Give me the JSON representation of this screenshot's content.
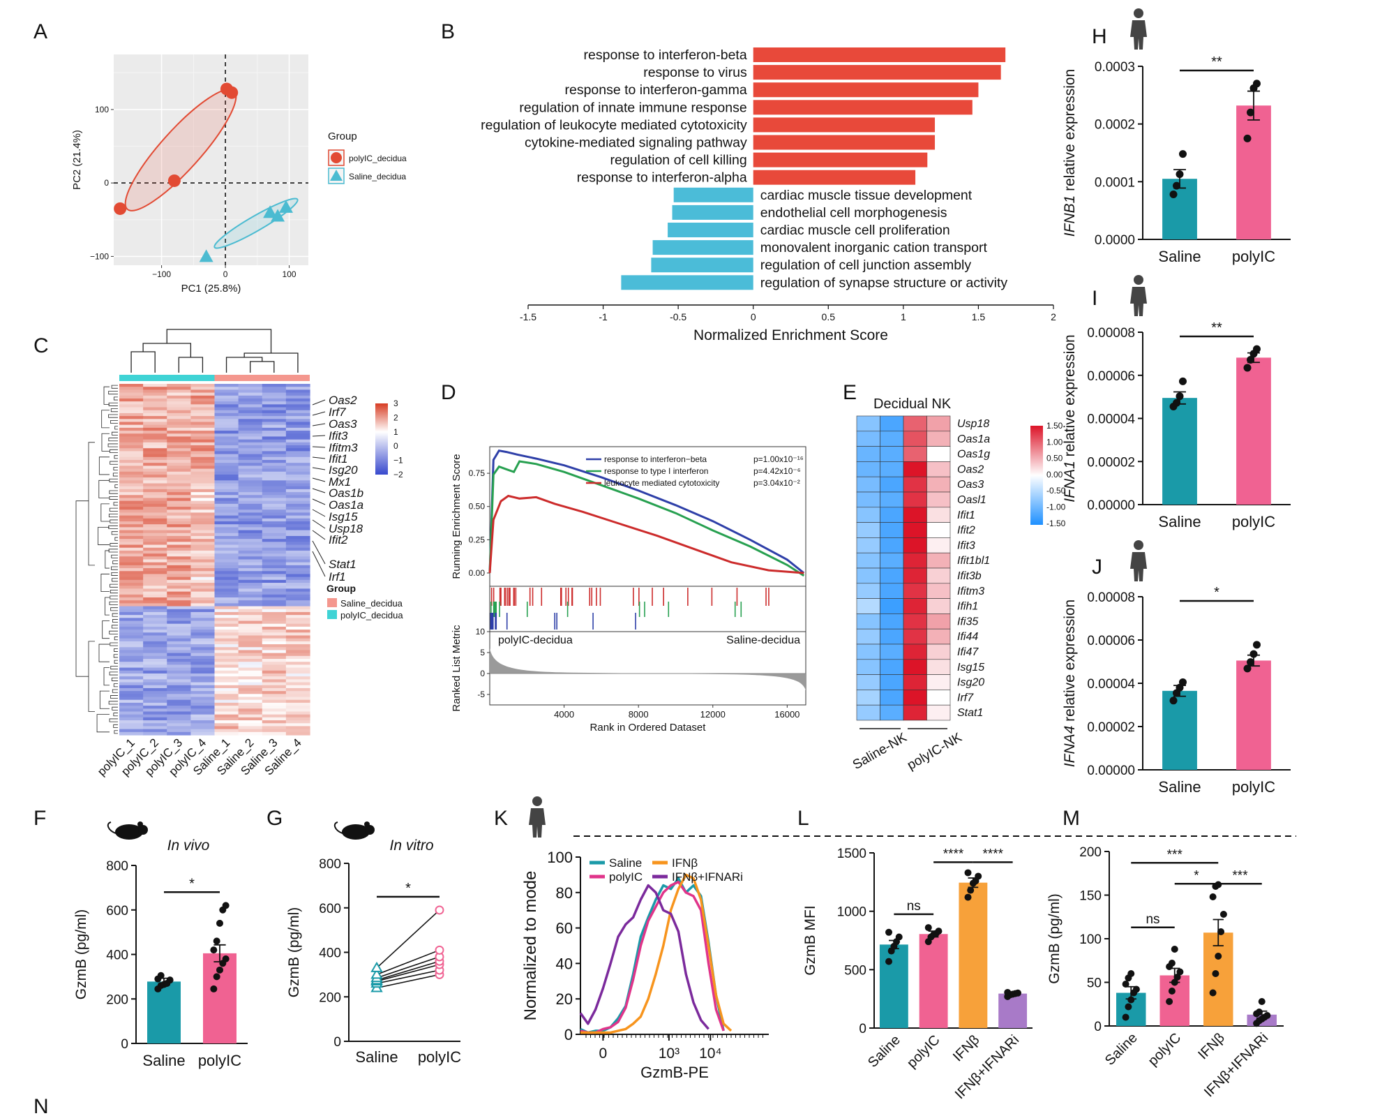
{
  "panel_letters": [
    "A",
    "B",
    "C",
    "D",
    "E",
    "F",
    "G",
    "H",
    "I",
    "J",
    "K",
    "L",
    "M",
    "N"
  ],
  "colors": {
    "polyIC": "#f06292",
    "saline": "#1a9aa8",
    "ifnb": "#f7a13a",
    "ifnb_ifnari": "#a87ac8",
    "pca_polyIC": "#e24a33",
    "pca_saline": "#4bbbd1",
    "nes_up": "#e8493a",
    "nes_down": "#4bbcd8"
  },
  "chart_data": [
    {
      "panel": "A",
      "type": "scatter",
      "xlabel": "PC1 (25.8%)",
      "ylabel": "PC2 (21.4%)",
      "xlim": [
        -175,
        130
      ],
      "ylim": [
        -112,
        175
      ],
      "xticks": [
        -100,
        0,
        100
      ],
      "yticks": [
        -100,
        0,
        100
      ],
      "xtick_labels": [
        "−100",
        "0",
        "100"
      ],
      "ytick_labels": [
        "−100",
        "0",
        "100"
      ],
      "legend_title": "Group",
      "series": [
        {
          "name": "polyIC_decidua",
          "marker": "circle",
          "x": [
            -165,
            -80,
            2,
            10
          ],
          "y": [
            -35,
            3,
            128,
            123
          ]
        },
        {
          "name": "Saline_decidua",
          "marker": "triangle",
          "x": [
            -30,
            70,
            82,
            95
          ],
          "y": [
            -100,
            -40,
            -45,
            -33
          ]
        }
      ],
      "ellipses": [
        {
          "group": "polyIC_decidua",
          "cx": -70,
          "cy": 45,
          "rx": 125,
          "ry": 27,
          "angle": -48
        },
        {
          "group": "Saline_decidua",
          "cx": 48,
          "cy": -55,
          "rx": 75,
          "ry": 10,
          "angle": -30
        }
      ]
    },
    {
      "panel": "B",
      "type": "bar",
      "orientation": "horizontal",
      "xlabel": "Normalized Enrichment Score",
      "xlim": [
        -1.5,
        2
      ],
      "xticks": [
        -1.5,
        -1,
        -0.5,
        0,
        0.5,
        1,
        1.5,
        2
      ],
      "categories": [
        "response to interferon-beta",
        "response to virus",
        "response to interferon-gamma",
        "regulation of innate immune response",
        "regulation of leukocyte mediated cytotoxicity",
        "cytokine-mediated signaling pathway",
        "regulation of cell killing",
        "response to interferon-alpha",
        "cardiac muscle tissue development",
        "endothelial cell morphogenesis",
        "cardiac muscle cell proliferation",
        "monovalent inorganic cation transport",
        "regulation of cell junction assembly",
        "regulation of synapse structure or activity"
      ],
      "values": [
        1.68,
        1.65,
        1.5,
        1.46,
        1.21,
        1.21,
        1.16,
        1.08,
        -0.53,
        -0.54,
        -0.57,
        -0.67,
        -0.68,
        -0.88
      ]
    },
    {
      "panel": "C",
      "type": "heatmap",
      "columns": [
        "polyIC_1",
        "polyIC_2",
        "polyIC_3",
        "polyIC_4",
        "Saline_1",
        "Saline_2",
        "Saline_3",
        "Saline_4"
      ],
      "gene_labels": [
        "Oas2",
        "Irf7",
        "Oas3",
        "Ifit3",
        "Ifitm3",
        "Ifit1",
        "Isg20",
        "Mx1",
        "Oas1b",
        "Oas1a",
        "Isg15",
        "Usp18",
        "Ifit2",
        "Stat1",
        "Irf1"
      ],
      "colorbar_ticks": [
        "3",
        "2",
        "1",
        "0",
        "−1",
        "−2"
      ],
      "legend_title": "Group",
      "legend_items": [
        "Saline_decidua",
        "polyIC_decidua"
      ]
    },
    {
      "panel": "D",
      "type": "line",
      "ylabel": "Running Enrichment Score",
      "ylabel2": "Ranked List Metric",
      "xlabel": "Rank in Ordered Dataset",
      "xlim": [
        0,
        17000
      ],
      "ylim": [
        -0.1,
        0.95
      ],
      "xticks": [
        4000,
        8000,
        12000,
        16000
      ],
      "yticks": [
        0.0,
        0.25,
        0.5,
        0.75
      ],
      "ytick_labels": [
        "0.00",
        "0.25",
        "0.50",
        "0.75"
      ],
      "metric_yticks": [
        "10",
        "5",
        "0",
        "-5"
      ],
      "left_label": "polyIC-decidua",
      "right_label": "Saline-decidua",
      "series": [
        {
          "name": "response to interferon−beta",
          "p": "p=1.00x10⁻¹⁶",
          "color": "#2e3fa8",
          "x": [
            0,
            200,
            500,
            900,
            1500,
            2500,
            4000,
            6000,
            8000,
            10000,
            12000,
            14000,
            16000,
            16900
          ],
          "y": [
            0,
            0.85,
            0.92,
            0.91,
            0.89,
            0.86,
            0.81,
            0.72,
            0.62,
            0.51,
            0.39,
            0.25,
            0.1,
            0.0
          ]
        },
        {
          "name": "response to type I interferon",
          "p": "p=4.42x10⁻⁶",
          "color": "#27a050",
          "x": [
            0,
            200,
            500,
            900,
            1300,
            1600,
            2500,
            4000,
            6000,
            8000,
            10000,
            12000,
            14000,
            16000,
            16900
          ],
          "y": [
            0,
            0.74,
            0.8,
            0.78,
            0.76,
            0.84,
            0.82,
            0.76,
            0.66,
            0.56,
            0.45,
            0.32,
            0.2,
            0.06,
            -0.02
          ]
        },
        {
          "name": "leukocyte mediated cytotoxicity",
          "p": "p=3.04x10⁻²",
          "color": "#cc2b2b",
          "x": [
            0,
            200,
            600,
            1000,
            1600,
            2500,
            3500,
            5000,
            7000,
            9000,
            11000,
            13000,
            15000,
            16900
          ],
          "y": [
            0,
            0.4,
            0.54,
            0.58,
            0.56,
            0.57,
            0.52,
            0.46,
            0.37,
            0.28,
            0.18,
            0.08,
            0.02,
            0.0
          ]
        }
      ]
    },
    {
      "panel": "E",
      "type": "heatmap",
      "title": "Decidual NK",
      "columns": [
        "Saline-NK",
        "Saline-NK",
        "polyIC-NK",
        "polyIC-NK"
      ],
      "group_labels": [
        "Saline-NK",
        "polyIC-NK"
      ],
      "rows": [
        "Usp18",
        "Oas1a",
        "Oas1g",
        "Oas2",
        "Oas3",
        "Oasl1",
        "Ifit1",
        "Ifit2",
        "Ifit3",
        "Ifit1bl1",
        "Ifit3b",
        "Ifitm3",
        "Ifih1",
        "Ifi35",
        "Ifi44",
        "Ifi47",
        "Isg15",
        "Isg20",
        "Irf7",
        "Stat1"
      ],
      "values": [
        [
          -0.8,
          -1.2,
          1.0,
          0.6
        ],
        [
          -0.9,
          -1.1,
          1.1,
          0.5
        ],
        [
          -1.0,
          -1.1,
          1.0,
          0.0
        ],
        [
          -1.0,
          -1.1,
          1.5,
          0.4
        ],
        [
          -0.9,
          -1.2,
          1.3,
          0.5
        ],
        [
          -0.9,
          -1.1,
          1.3,
          0.4
        ],
        [
          -0.8,
          -1.2,
          1.5,
          0.2
        ],
        [
          -0.7,
          -1.2,
          1.5,
          0.0
        ],
        [
          -0.7,
          -1.2,
          1.5,
          0.1
        ],
        [
          -0.8,
          -1.1,
          1.4,
          0.5
        ],
        [
          -0.8,
          -1.2,
          1.4,
          0.3
        ],
        [
          -0.7,
          -1.2,
          1.3,
          0.4
        ],
        [
          -0.5,
          -1.3,
          1.4,
          0.3
        ],
        [
          -0.8,
          -1.2,
          1.3,
          0.6
        ],
        [
          -0.7,
          -1.2,
          1.3,
          0.5
        ],
        [
          -0.8,
          -1.1,
          1.4,
          0.3
        ],
        [
          -0.8,
          -1.2,
          1.5,
          0.2
        ],
        [
          -0.7,
          -1.2,
          1.4,
          0.1
        ],
        [
          -0.6,
          -1.2,
          1.5,
          0.0
        ],
        [
          -0.7,
          -1.1,
          1.4,
          0.1
        ]
      ],
      "colorbar_ticks": [
        "1.50",
        "1.00",
        "0.50",
        "0.00",
        "-0.50",
        "-1.00",
        "-1.50"
      ]
    },
    {
      "panel": "F",
      "type": "bar",
      "title": "In vivo",
      "ylabel": "GzmB (pg/ml)",
      "ylim": [
        0,
        800
      ],
      "yticks": [
        0,
        200,
        400,
        600,
        800
      ],
      "categories": [
        "Saline",
        "polyIC"
      ],
      "values": [
        278,
        405
      ],
      "errors": [
        15,
        38
      ],
      "points": [
        [
          245,
          260,
          265,
          270,
          285,
          290,
          305
        ],
        [
          245,
          300,
          330,
          360,
          380,
          420,
          460,
          540,
          600,
          620
        ]
      ],
      "significance": [
        "*"
      ]
    },
    {
      "panel": "G",
      "type": "scatter",
      "title": "In vitro",
      "ylabel": "GzmB (pg/ml)",
      "ylim": [
        0,
        800
      ],
      "yticks": [
        0,
        200,
        400,
        600,
        800
      ],
      "categories": [
        "Saline",
        "polyIC"
      ],
      "pairs": [
        [
          240,
          300
        ],
        [
          260,
          320
        ],
        [
          270,
          345
        ],
        [
          275,
          360
        ],
        [
          285,
          380
        ],
        [
          300,
          410
        ],
        [
          330,
          590
        ]
      ],
      "significance": [
        "*"
      ]
    },
    {
      "panel": "H",
      "type": "bar",
      "ylabel": "IFNB1 relative expression",
      "ylim": [
        0,
        0.0003
      ],
      "yticks": [
        0.0,
        0.0001,
        0.0002,
        0.0003
      ],
      "ytick_labels": [
        "0.0000",
        "0.0001",
        "0.0002",
        "0.0003"
      ],
      "categories": [
        "Saline",
        "polyIC"
      ],
      "values": [
        0.000105,
        0.000232
      ],
      "errors": [
        1.6e-05,
        2.5e-05
      ],
      "points": [
        [
          7.8e-05,
          9.3e-05,
          0.000113,
          0.000148
        ],
        [
          0.000175,
          0.00022,
          0.000262,
          0.00027
        ]
      ],
      "significance": [
        "**"
      ]
    },
    {
      "panel": "I",
      "type": "bar",
      "ylabel": "IFNA1 relative expression",
      "ylim": [
        0,
        8e-05
      ],
      "yticks": [
        0.0,
        2e-05,
        4e-05,
        6e-05,
        8e-05
      ],
      "ytick_labels": [
        "0.00000",
        "0.00002",
        "0.00004",
        "0.00006",
        "0.00008"
      ],
      "categories": [
        "Saline",
        "polyIC"
      ],
      "values": [
        4.95e-05,
        6.82e-05
      ],
      "errors": [
        2.8e-06,
        2.2e-06
      ],
      "points": [
        [
          4.55e-05,
          4.72e-05,
          5.03e-05,
          5.72e-05
        ],
        [
          6.35e-05,
          6.72e-05,
          7e-05,
          7.22e-05
        ]
      ],
      "significance": [
        "**"
      ]
    },
    {
      "panel": "J",
      "type": "bar",
      "ylabel": "IFNA4 relative expression",
      "ylim": [
        0,
        8e-05
      ],
      "yticks": [
        0.0,
        2e-05,
        4e-05,
        6e-05,
        8e-05
      ],
      "ytick_labels": [
        "0.00000",
        "0.00002",
        "0.00004",
        "0.00006",
        "0.00008"
      ],
      "categories": [
        "Saline",
        "polyIC"
      ],
      "values": [
        3.65e-05,
        5.05e-05
      ],
      "errors": [
        2.5e-06,
        2.5e-06
      ],
      "points": [
        [
          3.2e-05,
          3.55e-05,
          3.8e-05,
          4.05e-05
        ],
        [
          4.68e-05,
          4.98e-05,
          5.35e-05,
          5.78e-05
        ]
      ],
      "significance": [
        "*"
      ]
    },
    {
      "panel": "K",
      "type": "line",
      "xlabel": "GzmB-PE",
      "ylabel": "Normalized to mode",
      "ylim": [
        0,
        100
      ],
      "yticks": [
        0,
        20,
        40,
        60,
        80,
        100
      ],
      "xtick_labels": [
        "0",
        "10³",
        "10⁴"
      ],
      "series": [
        {
          "name": "Saline",
          "color": "#1a9aa8",
          "x": [
            0.0,
            0.04,
            0.08,
            0.12,
            0.16,
            0.2,
            0.24,
            0.28,
            0.32,
            0.36,
            0.4,
            0.44,
            0.48,
            0.52,
            0.56,
            0.6,
            0.64,
            0.68,
            0.72,
            0.76
          ],
          "y": [
            3,
            1,
            2,
            2,
            4,
            9,
            16,
            34,
            55,
            66,
            76,
            84,
            82,
            88,
            80,
            84,
            78,
            52,
            22,
            2
          ]
        },
        {
          "name": "polyIC",
          "color": "#e0348a",
          "x": [
            0.0,
            0.04,
            0.08,
            0.12,
            0.16,
            0.2,
            0.24,
            0.28,
            0.32,
            0.36,
            0.4,
            0.44,
            0.48,
            0.52,
            0.56,
            0.6,
            0.64,
            0.68,
            0.72,
            0.76
          ],
          "y": [
            2,
            1,
            1,
            3,
            4,
            7,
            15,
            31,
            50,
            64,
            72,
            80,
            84,
            86,
            80,
            78,
            70,
            40,
            14,
            2
          ]
        },
        {
          "name": "IFNβ",
          "color": "#f7941d",
          "x": [
            0.0,
            0.04,
            0.08,
            0.12,
            0.16,
            0.2,
            0.24,
            0.28,
            0.32,
            0.36,
            0.4,
            0.44,
            0.48,
            0.52,
            0.56,
            0.6,
            0.64,
            0.68,
            0.72,
            0.76,
            0.8
          ],
          "y": [
            1,
            1,
            1,
            1,
            1,
            2,
            3,
            6,
            10,
            20,
            34,
            50,
            70,
            82,
            90,
            88,
            76,
            50,
            22,
            6,
            2
          ]
        },
        {
          "name": "IFNβ+IFNARi",
          "color": "#7b2a9c",
          "x": [
            0.0,
            0.04,
            0.08,
            0.12,
            0.16,
            0.2,
            0.24,
            0.28,
            0.32,
            0.36,
            0.4,
            0.44,
            0.48,
            0.52,
            0.56,
            0.6,
            0.64,
            0.68
          ],
          "y": [
            12,
            6,
            14,
            26,
            40,
            55,
            62,
            66,
            76,
            84,
            80,
            70,
            68,
            58,
            34,
            18,
            8,
            3
          ]
        }
      ]
    },
    {
      "panel": "L",
      "type": "bar",
      "ylabel": "GzmB MFI",
      "ylim": [
        0,
        1500
      ],
      "yticks": [
        0,
        500,
        1000,
        1500
      ],
      "categories": [
        "Saline",
        "polyIC",
        "IFNβ",
        "IFNβ+IFNARi"
      ],
      "values": [
        715,
        805,
        1245,
        295
      ],
      "errors": [
        35,
        25,
        40,
        10
      ],
      "points": [
        [
          570,
          660,
          700,
          740,
          780,
          820
        ],
        [
          740,
          780,
          800,
          810,
          830,
          860
        ],
        [
          1120,
          1180,
          1240,
          1260,
          1300,
          1330
        ],
        [
          270,
          285,
          290,
          295,
          300,
          305
        ]
      ],
      "significance": [
        "ns",
        "****",
        "****"
      ]
    },
    {
      "panel": "M",
      "type": "bar",
      "ylabel": "GzmB (pg/ml)",
      "ylim": [
        0,
        200
      ],
      "yticks": [
        0,
        50,
        100,
        150,
        200
      ],
      "categories": [
        "Saline",
        "polyIC",
        "IFNβ",
        "IFNβ+IFNARi"
      ],
      "values": [
        38,
        58,
        107,
        13
      ],
      "errors": [
        7,
        8,
        15,
        4
      ],
      "points": [
        [
          10,
          22,
          30,
          38,
          42,
          48,
          55,
          60
        ],
        [
          28,
          40,
          50,
          56,
          62,
          68,
          72,
          88
        ],
        [
          38,
          60,
          80,
          108,
          128,
          148,
          160,
          162
        ],
        [
          3,
          6,
          8,
          10,
          12,
          14,
          16,
          28
        ]
      ],
      "significance": [
        "***",
        "ns",
        "*",
        "***"
      ]
    }
  ]
}
